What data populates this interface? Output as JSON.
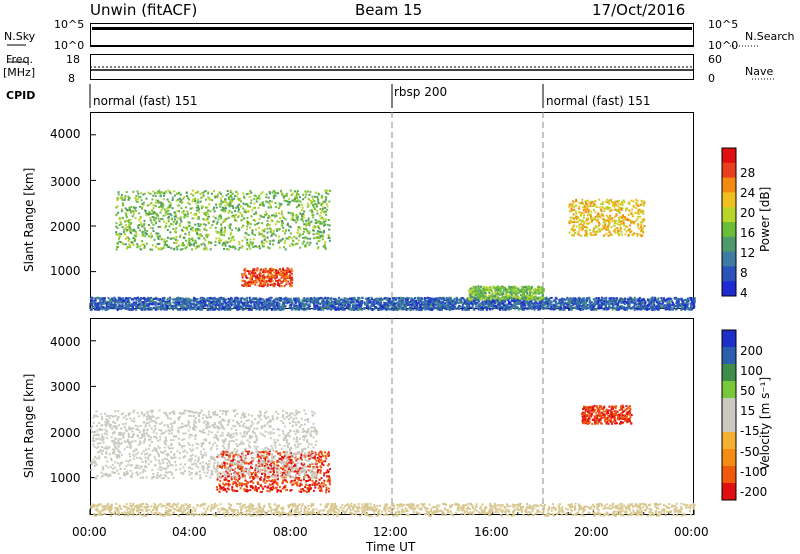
{
  "header": {
    "station": "Unwin  (fitACF)",
    "beam": "Beam 15",
    "date": "17/Oct/2016"
  },
  "strips": {
    "nsky_label": "N.Sky",
    "nsky_ticks": [
      "10^5",
      "10^0"
    ],
    "nsky_right_ticks": [
      "10^5",
      "10^0"
    ],
    "nsearch_label": "N.Search",
    "freq_label": "Freq.",
    "freq_unit": "[MHz]",
    "freq_ticks": [
      "18",
      "8"
    ],
    "nave_ticks": [
      "60",
      "0"
    ],
    "nave_label": "Nave",
    "cpid_label": "CPID"
  },
  "cpid": [
    {
      "label": "normal (fast) 151",
      "start_h": 0
    },
    {
      "label": "rbsp 200",
      "start_h": 12
    },
    {
      "label": "normal (fast) 151",
      "start_h": 18
    }
  ],
  "x_axis": {
    "label": "Time UT",
    "ticks": [
      "00:00",
      "04:00",
      "08:00",
      "12:00",
      "16:00",
      "20:00",
      "00:00"
    ]
  },
  "power_panel": {
    "ylabel": "Slant Range [km]",
    "yticks": [
      "4000",
      "3000",
      "2000",
      "1000"
    ],
    "cbar_label": "Power [dB]",
    "cbar_ticks": [
      "28",
      "24",
      "20",
      "16",
      "12",
      "8",
      "4"
    ]
  },
  "velocity_panel": {
    "ylabel": "Slant Range [km]",
    "yticks": [
      "4000",
      "3000",
      "2000",
      "1000"
    ],
    "cbar_label": "Velocity [m s⁻¹]",
    "cbar_ticks": [
      "200",
      "100",
      "50",
      "15",
      "-15",
      "-50",
      "-100",
      "-200"
    ]
  },
  "colors": {
    "power_scale": [
      "#1d2bd0",
      "#2a52b8",
      "#3b7ca0",
      "#4e9a6a",
      "#6cbd3a",
      "#b8d52a",
      "#f0c020",
      "#f58a10",
      "#e8401a",
      "#e01010"
    ],
    "velocity_scale": [
      "#e01010",
      "#f05a0c",
      "#f58c12",
      "#f4b030",
      "#c9c9c0",
      "#c9c9c0",
      "#77c93a",
      "#3e8d4a",
      "#2b5fae",
      "#1e2fc8"
    ]
  },
  "chart_data": {
    "type": "heatmap",
    "x_range_hours": [
      0,
      24
    ],
    "y_range_km": [
      180,
      4500
    ],
    "power_features": [
      {
        "name": "ground scatter band",
        "t": [
          0,
          24
        ],
        "range_km": [
          180,
          450
        ],
        "power_db": 6
      },
      {
        "name": "morning main echo",
        "t": [
          1,
          9.5
        ],
        "range_km": [
          1500,
          2800
        ],
        "power_db": 14
      },
      {
        "name": "strong patch near 08:00",
        "t": [
          6,
          8
        ],
        "range_km": [
          700,
          1100
        ],
        "power_db": 26
      },
      {
        "name": "evening echo",
        "t": [
          19,
          22
        ],
        "range_km": [
          1800,
          2600
        ],
        "power_db": 20
      },
      {
        "name": "noon ground band",
        "t": [
          15,
          18
        ],
        "range_km": [
          400,
          700
        ],
        "power_db": 14
      }
    ],
    "velocity_features": [
      {
        "name": "strong negative arc",
        "t": [
          5,
          9.5
        ],
        "range_km": [
          700,
          1600
        ],
        "velocity_ms": -200
      },
      {
        "name": "low velocity band",
        "t": [
          0,
          9
        ],
        "range_km": [
          1000,
          2500
        ],
        "velocity_ms": 0
      },
      {
        "name": "evening negative patch",
        "t": [
          19.5,
          21.5
        ],
        "range_km": [
          2200,
          2600
        ],
        "velocity_ms": -200
      }
    ]
  }
}
